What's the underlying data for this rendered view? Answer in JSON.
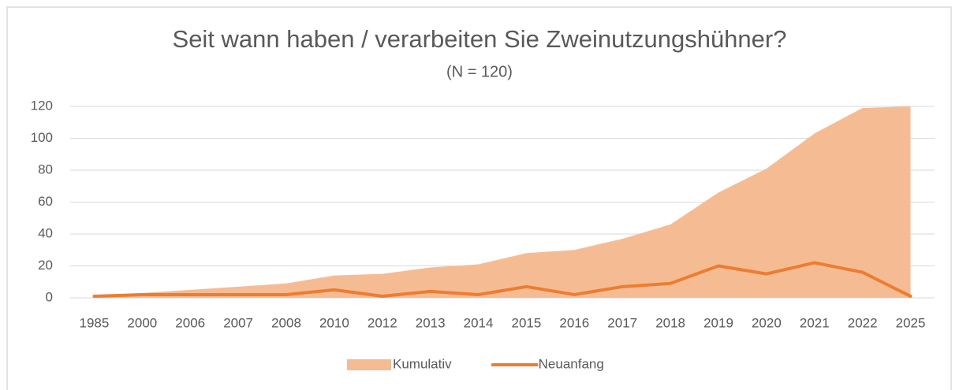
{
  "chart_data": {
    "type": "line",
    "title": "Seit wann haben / verarbeiten Sie Zweinutzungshühner?",
    "subtitle": "(N = 120)",
    "categories": [
      "1985",
      "2000",
      "2006",
      "2007",
      "2008",
      "2010",
      "2012",
      "2013",
      "2014",
      "2015",
      "2016",
      "2017",
      "2018",
      "2019",
      "2020",
      "2021",
      "2022",
      "2025"
    ],
    "series": [
      {
        "name": "Kumulativ",
        "kind": "area",
        "color": "#f5bc94",
        "values": [
          1,
          3,
          5,
          7,
          9,
          14,
          15,
          19,
          21,
          28,
          30,
          37,
          46,
          66,
          81,
          103,
          119,
          120
        ]
      },
      {
        "name": "Neuanfang",
        "kind": "line",
        "color": "#ed7d31",
        "values": [
          1,
          2,
          2,
          2,
          2,
          5,
          1,
          4,
          2,
          7,
          2,
          7,
          9,
          20,
          15,
          22,
          16,
          1
        ]
      }
    ],
    "ylim": [
      0,
      120
    ],
    "yticks": [
      0,
      20,
      40,
      60,
      80,
      100,
      120
    ],
    "grid": true,
    "legend": "bottom"
  }
}
